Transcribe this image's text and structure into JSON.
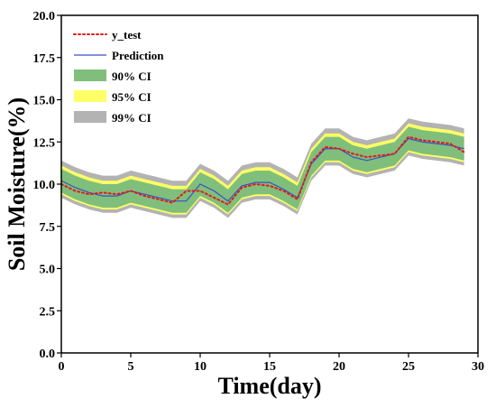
{
  "chart_data": {
    "type": "line",
    "title": "",
    "xlabel": "Time(day)",
    "ylabel": "Soil Moisture(%)",
    "xlim": [
      0,
      30
    ],
    "ylim": [
      0,
      20
    ],
    "xticks": [
      "0",
      "5",
      "10",
      "15",
      "20",
      "25",
      "30"
    ],
    "yticks": [
      "0.0",
      "2.5",
      "5.0",
      "7.5",
      "10.0",
      "12.5",
      "15.0",
      "17.5",
      "20.0"
    ],
    "grid": false,
    "legend_position": "top-left",
    "x": [
      0,
      1,
      2,
      3,
      4,
      5,
      6,
      7,
      8,
      9,
      10,
      11,
      12,
      13,
      14,
      15,
      16,
      17,
      18,
      19,
      20,
      21,
      22,
      23,
      24,
      25,
      26,
      27,
      28,
      29
    ],
    "series": [
      {
        "name": "y_test",
        "style": "dotted",
        "color": "#e41a1c",
        "values": [
          10.0,
          9.6,
          9.4,
          9.5,
          9.4,
          9.6,
          9.3,
          9.1,
          8.9,
          9.6,
          9.6,
          9.2,
          8.8,
          9.8,
          10.0,
          9.9,
          9.6,
          9.1,
          11.3,
          12.2,
          12.1,
          11.8,
          11.6,
          11.7,
          11.8,
          12.8,
          12.6,
          12.5,
          12.4,
          11.9
        ]
      },
      {
        "name": "Prediction",
        "style": "solid",
        "color": "#3b4ec8",
        "values": [
          10.2,
          9.8,
          9.5,
          9.3,
          9.3,
          9.6,
          9.4,
          9.2,
          9.0,
          9.0,
          10.0,
          9.6,
          9.0,
          9.9,
          10.1,
          10.1,
          9.7,
          9.2,
          11.2,
          12.1,
          12.1,
          11.6,
          11.4,
          11.6,
          11.8,
          12.7,
          12.5,
          12.4,
          12.3,
          12.1
        ]
      }
    ],
    "intervals": [
      {
        "name": "99% CI",
        "color": "#b3b3b3",
        "lower": [
          9.2,
          8.8,
          8.5,
          8.3,
          8.3,
          8.6,
          8.4,
          8.2,
          8.0,
          8.0,
          9.0,
          8.6,
          8.0,
          8.9,
          9.1,
          9.1,
          8.7,
          8.2,
          10.2,
          11.1,
          11.1,
          10.6,
          10.4,
          10.6,
          10.8,
          11.7,
          11.5,
          11.4,
          11.3,
          11.1
        ],
        "upper": [
          11.4,
          11.0,
          10.7,
          10.5,
          10.5,
          10.8,
          10.6,
          10.4,
          10.2,
          10.2,
          11.2,
          10.8,
          10.2,
          11.1,
          11.3,
          11.3,
          10.9,
          10.4,
          12.4,
          13.3,
          13.3,
          12.8,
          12.6,
          12.8,
          13.0,
          13.9,
          13.7,
          13.6,
          13.5,
          13.3
        ]
      },
      {
        "name": "95% CI",
        "color": "#ffff66",
        "lower": [
          9.4,
          9.0,
          8.7,
          8.5,
          8.5,
          8.8,
          8.6,
          8.4,
          8.2,
          8.2,
          9.2,
          8.8,
          8.2,
          9.1,
          9.3,
          9.3,
          8.9,
          8.4,
          10.4,
          11.3,
          11.3,
          10.8,
          10.6,
          10.8,
          11.0,
          11.9,
          11.7,
          11.6,
          11.5,
          11.3
        ],
        "upper": [
          11.1,
          10.7,
          10.4,
          10.2,
          10.2,
          10.5,
          10.3,
          10.1,
          9.9,
          9.9,
          10.9,
          10.5,
          9.9,
          10.8,
          11.0,
          11.0,
          10.6,
          10.1,
          12.1,
          13.0,
          13.0,
          12.5,
          12.3,
          12.5,
          12.7,
          13.6,
          13.4,
          13.3,
          13.2,
          13.0
        ]
      },
      {
        "name": "90% CI",
        "color": "#7fbf7b",
        "lower": [
          9.5,
          9.1,
          8.8,
          8.6,
          8.6,
          8.9,
          8.7,
          8.5,
          8.3,
          8.3,
          9.3,
          8.9,
          8.3,
          9.2,
          9.4,
          9.4,
          9.0,
          8.5,
          10.5,
          11.4,
          11.4,
          10.9,
          10.7,
          10.9,
          11.1,
          12.0,
          11.8,
          11.7,
          11.6,
          11.4
        ],
        "upper": [
          10.9,
          10.5,
          10.2,
          10.0,
          10.0,
          10.3,
          10.1,
          9.9,
          9.7,
          9.7,
          10.7,
          10.3,
          9.7,
          10.6,
          10.8,
          10.8,
          10.4,
          9.9,
          11.9,
          12.8,
          12.8,
          12.3,
          12.1,
          12.3,
          12.5,
          13.4,
          13.2,
          13.1,
          13.0,
          12.8
        ]
      }
    ],
    "legend": [
      {
        "label": "y_test",
        "kind": "dotted-line",
        "color": "#e41a1c"
      },
      {
        "label": "Prediction",
        "kind": "solid-line",
        "color": "#3b4ec8"
      },
      {
        "label": "90% CI",
        "kind": "patch",
        "color": "#7fbf7b"
      },
      {
        "label": "95% CI",
        "kind": "patch",
        "color": "#ffff66"
      },
      {
        "label": "99% CI",
        "kind": "patch",
        "color": "#b3b3b3"
      }
    ]
  }
}
